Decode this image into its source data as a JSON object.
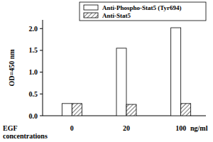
{
  "chart_data": {
    "type": "bar",
    "categories": [
      "0",
      "20",
      "100"
    ],
    "series": [
      {
        "name": "Anti-Phospho-Stat5 (Tyr694)",
        "color": "#ffffff",
        "values": [
          0.28,
          1.55,
          2.02
        ]
      },
      {
        "name": "Anti-Stat5",
        "color": "#555555",
        "values": [
          0.28,
          0.26,
          0.28
        ]
      }
    ],
    "y_label": "OD=450 nm",
    "x_label": "EGF concentrations",
    "annotations": [
      "ng/ml"
    ],
    "ylim": [
      0,
      2.2
    ],
    "yticks": [
      {
        "value": 0,
        "label": "0.0"
      },
      0.5,
      {
        "value": 1,
        "label": "1.0"
      },
      1.5,
      {
        "value": 2,
        "label": "2.0"
      }
    ],
    "legend": "top-right",
    "grid": false
  }
}
